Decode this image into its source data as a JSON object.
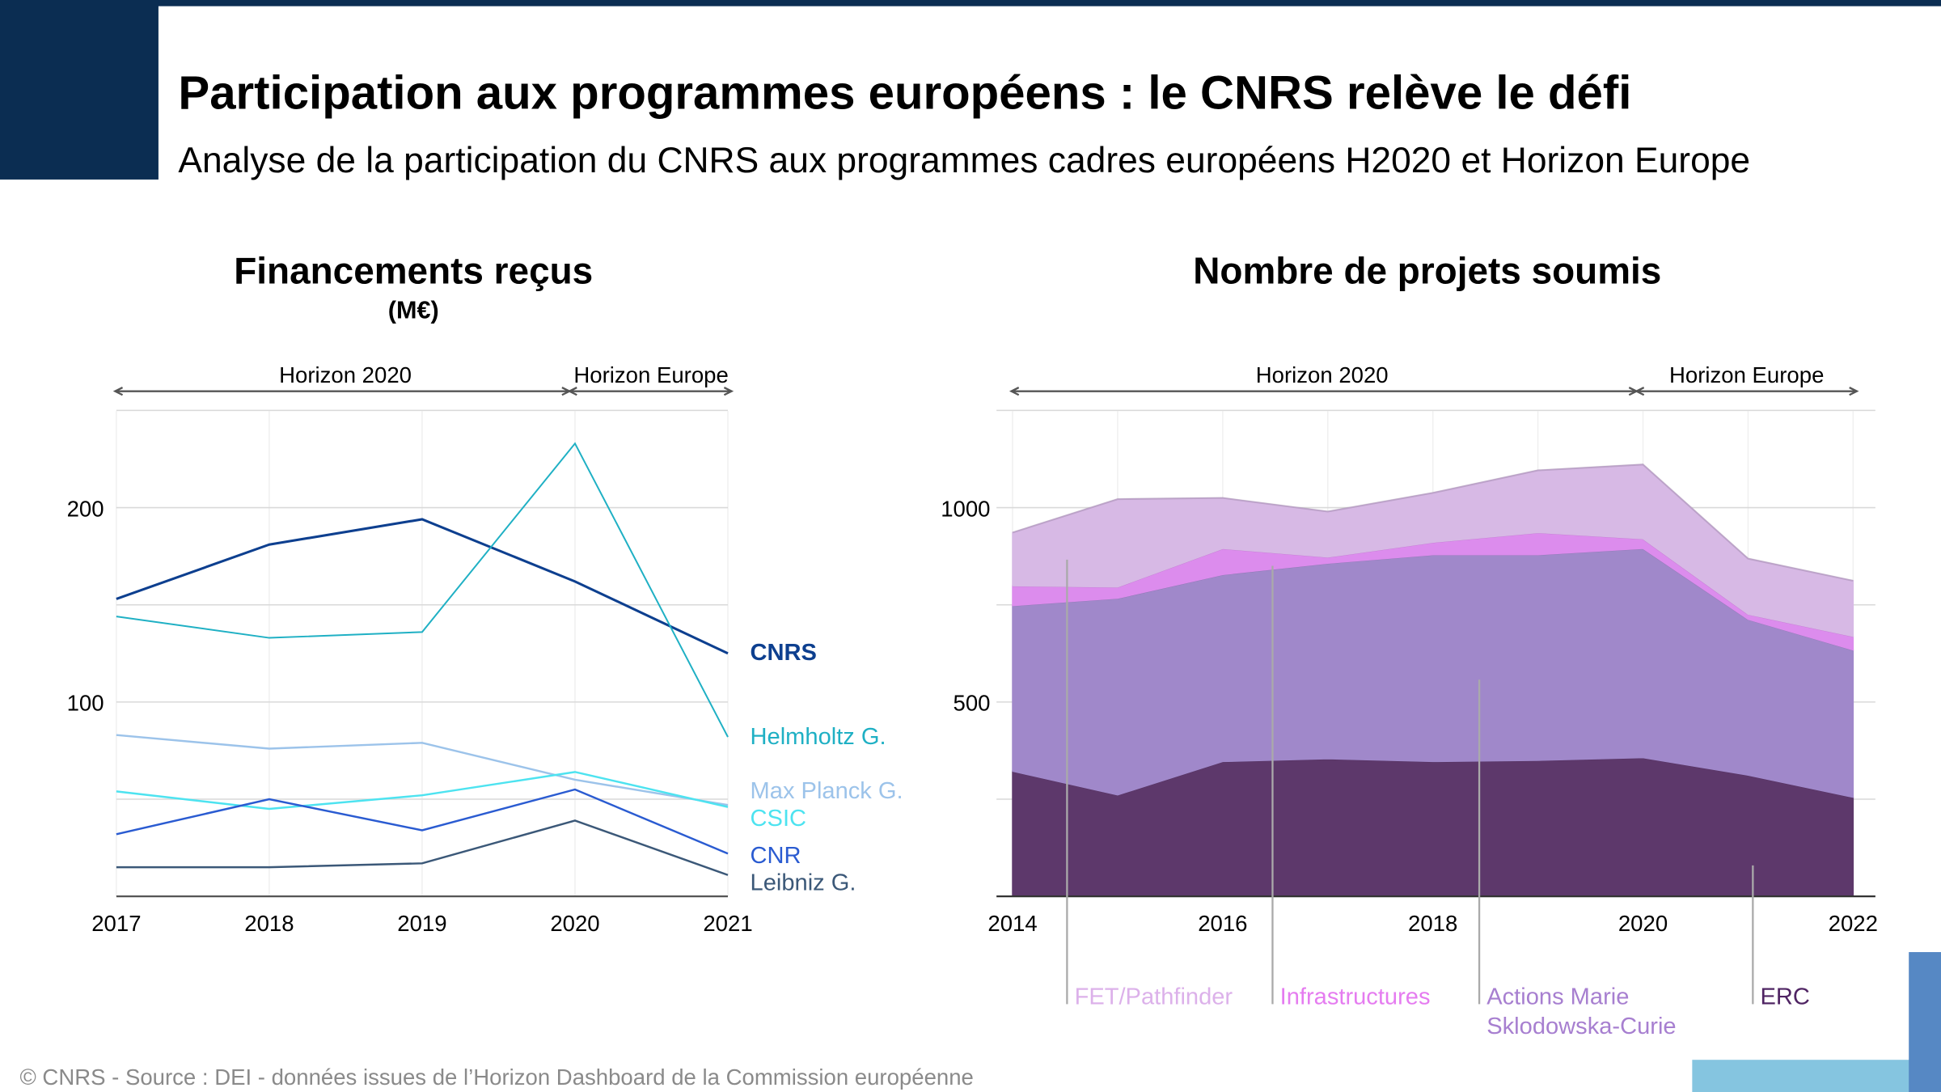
{
  "header": {
    "title": "Participation aux programmes européens : le CNRS relève le défi",
    "subtitle": "Analyse de la participation du CNRS aux programmes cadres européens H2020 et Horizon Europe",
    "brand_color": "#0b2d52"
  },
  "footer": {
    "source": "© CNRS - Source : DEI - données issues de l’Horizon Dashboard de la Commission européenne"
  },
  "chart_data": [
    {
      "type": "line",
      "title": "Financements reçus",
      "subtitle": "(M€)",
      "periods": [
        "Horizon 2020",
        "Horizon Europe"
      ],
      "x": [
        2017,
        2018,
        2019,
        2020,
        2021
      ],
      "x_ticks": [
        "2017",
        "2018",
        "2019",
        "2020",
        "2021"
      ],
      "y_ticks": [
        "100",
        "200"
      ],
      "ylim": [
        0,
        250
      ],
      "grid": true,
      "legend_placement": "right-end-labels",
      "series": [
        {
          "name": "CNRS",
          "color": "#0d3f8f",
          "values": [
            153,
            181,
            194,
            162,
            125
          ]
        },
        {
          "name": "Helmholtz G.",
          "color": "#1fb0c4",
          "values": [
            144,
            133,
            136,
            233,
            82
          ]
        },
        {
          "name": "Max Planck G.",
          "color": "#9cc3ea",
          "values": [
            83,
            76,
            79,
            60,
            47
          ]
        },
        {
          "name": "CSIC",
          "color": "#4de3f0",
          "values": [
            54,
            45,
            52,
            64,
            46
          ]
        },
        {
          "name": "CNR",
          "color": "#2a5bd1",
          "values": [
            32,
            50,
            34,
            55,
            22
          ]
        },
        {
          "name": "Leibniz G.",
          "color": "#3b5878",
          "values": [
            15,
            15,
            17,
            39,
            11
          ]
        }
      ]
    },
    {
      "type": "area",
      "stacked": true,
      "title": "Nombre de projets soumis",
      "periods": [
        "Horizon 2020",
        "Horizon Europe"
      ],
      "x": [
        2014,
        2015,
        2016,
        2017,
        2018,
        2019,
        2020,
        2021,
        2022
      ],
      "x_ticks": [
        "2014",
        "2016",
        "2018",
        "2020",
        "2022"
      ],
      "y_ticks": [
        "500",
        "1000"
      ],
      "ylim": [
        0,
        1250
      ],
      "grid": true,
      "legend_placement": "bottom",
      "series": [
        {
          "name": "ERC",
          "color": "#5d386b",
          "values": [
            322,
            261,
            347,
            354,
            347,
            350,
            357,
            312,
            255
          ]
        },
        {
          "name": "Actions Marie Sklodowska-Curie",
          "label_lines": [
            "Actions Marie",
            "Sklodowska-Curie"
          ],
          "color": "#a088ca",
          "values": [
            426,
            506,
            481,
            503,
            532,
            529,
            538,
            401,
            379
          ]
        },
        {
          "name": "Infrastructures",
          "color": "#dc8ced",
          "values": [
            51,
            29,
            67,
            16,
            32,
            57,
            25,
            13,
            35
          ]
        },
        {
          "name": "FET/Pathfinder",
          "color": "#d7b9e5",
          "values": [
            137,
            226,
            130,
            117,
            127,
            160,
            191,
            143,
            143
          ]
        }
      ]
    }
  ]
}
